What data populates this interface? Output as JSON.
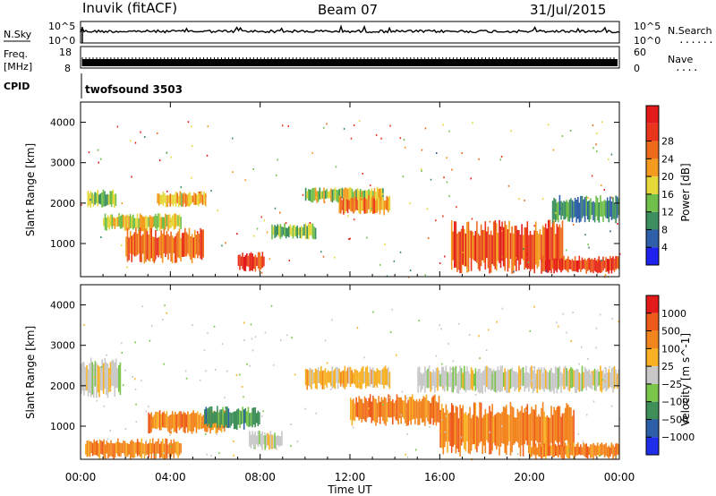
{
  "header": {
    "station": "Inuvik (fitACF)",
    "beam": "Beam 07",
    "date": "31/Jul/2015"
  },
  "panels": {
    "nsky": {
      "label": "N.Sky",
      "left_ticks": [
        "10^5",
        "10^0"
      ],
      "right_ticks": [
        "10^5",
        "10^0"
      ],
      "right_label": "N.Search",
      "right_label_marker": "........"
    },
    "freq": {
      "label_line1": "Freq.",
      "label_line2": "[MHz]",
      "left_ticks": [
        "18",
        "8"
      ],
      "right_ticks": [
        "60",
        "0"
      ],
      "right_label": "Nave",
      "right_label_marker": "...."
    },
    "cpid": {
      "label": "CPID",
      "value": "twofsound 3503"
    }
  },
  "x_axis": {
    "ticks": [
      "00:00",
      "04:00",
      "08:00",
      "12:00",
      "16:00",
      "20:00",
      "00:00"
    ],
    "label": "Time UT"
  },
  "chart_data": [
    {
      "type": "heatmap",
      "name": "Power",
      "ylabel": "Slant Range [km]",
      "yticks": [
        1000,
        2000,
        3000,
        4000
      ],
      "ylim": [
        180,
        4500
      ],
      "xlim_hours": [
        0,
        24
      ],
      "colorbar": {
        "label": "Power [dB]",
        "ticks": [
          "4",
          "8",
          "12",
          "16",
          "20",
          "24",
          "28"
        ],
        "colors": [
          "#1f22ee",
          "#2f5fa8",
          "#3d8f5f",
          "#6fbf4a",
          "#e6d83b",
          "#f39a1f",
          "#ee6b1c",
          "#e8351c",
          "#e21a1a"
        ]
      },
      "bands": [
        {
          "t0": 0.3,
          "t1": 1.6,
          "r0": 1850,
          "r1": 2350,
          "level": 12
        },
        {
          "t0": 1.0,
          "t1": 4.5,
          "r0": 1300,
          "r1": 1750,
          "level": 16
        },
        {
          "t0": 2.0,
          "t1": 5.5,
          "r0": 500,
          "r1": 1400,
          "level": 24
        },
        {
          "t0": 3.4,
          "t1": 5.6,
          "r0": 1900,
          "r1": 2300,
          "level": 18
        },
        {
          "t0": 7.0,
          "t1": 8.2,
          "r0": 300,
          "r1": 800,
          "level": 28
        },
        {
          "t0": 8.5,
          "t1": 10.5,
          "r0": 1100,
          "r1": 1500,
          "level": 12
        },
        {
          "t0": 10.0,
          "t1": 13.5,
          "r0": 2000,
          "r1": 2400,
          "level": 14
        },
        {
          "t0": 11.5,
          "t1": 13.8,
          "r0": 1700,
          "r1": 2200,
          "level": 22
        },
        {
          "t0": 16.5,
          "t1": 21.5,
          "r0": 250,
          "r1": 1600,
          "level": 26
        },
        {
          "t0": 20.5,
          "t1": 24.0,
          "r0": 250,
          "r1": 700,
          "level": 28
        },
        {
          "t0": 21.0,
          "t1": 24.0,
          "r0": 1500,
          "r1": 2200,
          "level": 8
        }
      ]
    },
    {
      "type": "heatmap",
      "name": "Velocity",
      "ylabel": "Slant Range [km]",
      "yticks": [
        1000,
        2000,
        3000,
        4000
      ],
      "ylim": [
        180,
        4500
      ],
      "xlim_hours": [
        0,
        24
      ],
      "colorbar": {
        "label": "Velocity [m s^-1]",
        "ticks": [
          "1000",
          "500",
          "100",
          "25",
          "-25",
          "-100",
          "-500",
          "-1000"
        ],
        "colors": [
          "#e21a1a",
          "#ee5a1a",
          "#f3851f",
          "#f8b125",
          "#c8c8c8",
          "#79c64a",
          "#3f8f59",
          "#2c5fa8",
          "#1f2ee8"
        ]
      },
      "bands": [
        {
          "t0": 0.0,
          "t1": 1.8,
          "r0": 1700,
          "r1": 2700,
          "value": 0
        },
        {
          "t0": 0.2,
          "t1": 4.5,
          "r0": 180,
          "r1": 700,
          "value": -300
        },
        {
          "t0": 3.0,
          "t1": 6.5,
          "r0": 800,
          "r1": 1400,
          "value": -200
        },
        {
          "t0": 5.5,
          "t1": 8.0,
          "r0": 900,
          "r1": 1500,
          "value": 150
        },
        {
          "t0": 7.5,
          "t1": 9.0,
          "r0": 400,
          "r1": 900,
          "value": 0
        },
        {
          "t0": 10.0,
          "t1": 13.8,
          "r0": 1900,
          "r1": 2500,
          "value": -50
        },
        {
          "t0": 12.0,
          "t1": 16.0,
          "r0": 1000,
          "r1": 1800,
          "value": -150
        },
        {
          "t0": 16.0,
          "t1": 22.0,
          "r0": 250,
          "r1": 1600,
          "value": -450
        },
        {
          "t0": 15.0,
          "t1": 24.0,
          "r0": 1800,
          "r1": 2500,
          "value": 0
        },
        {
          "t0": 20.0,
          "t1": 24.0,
          "r0": 180,
          "r1": 600,
          "value": -120
        }
      ]
    }
  ]
}
